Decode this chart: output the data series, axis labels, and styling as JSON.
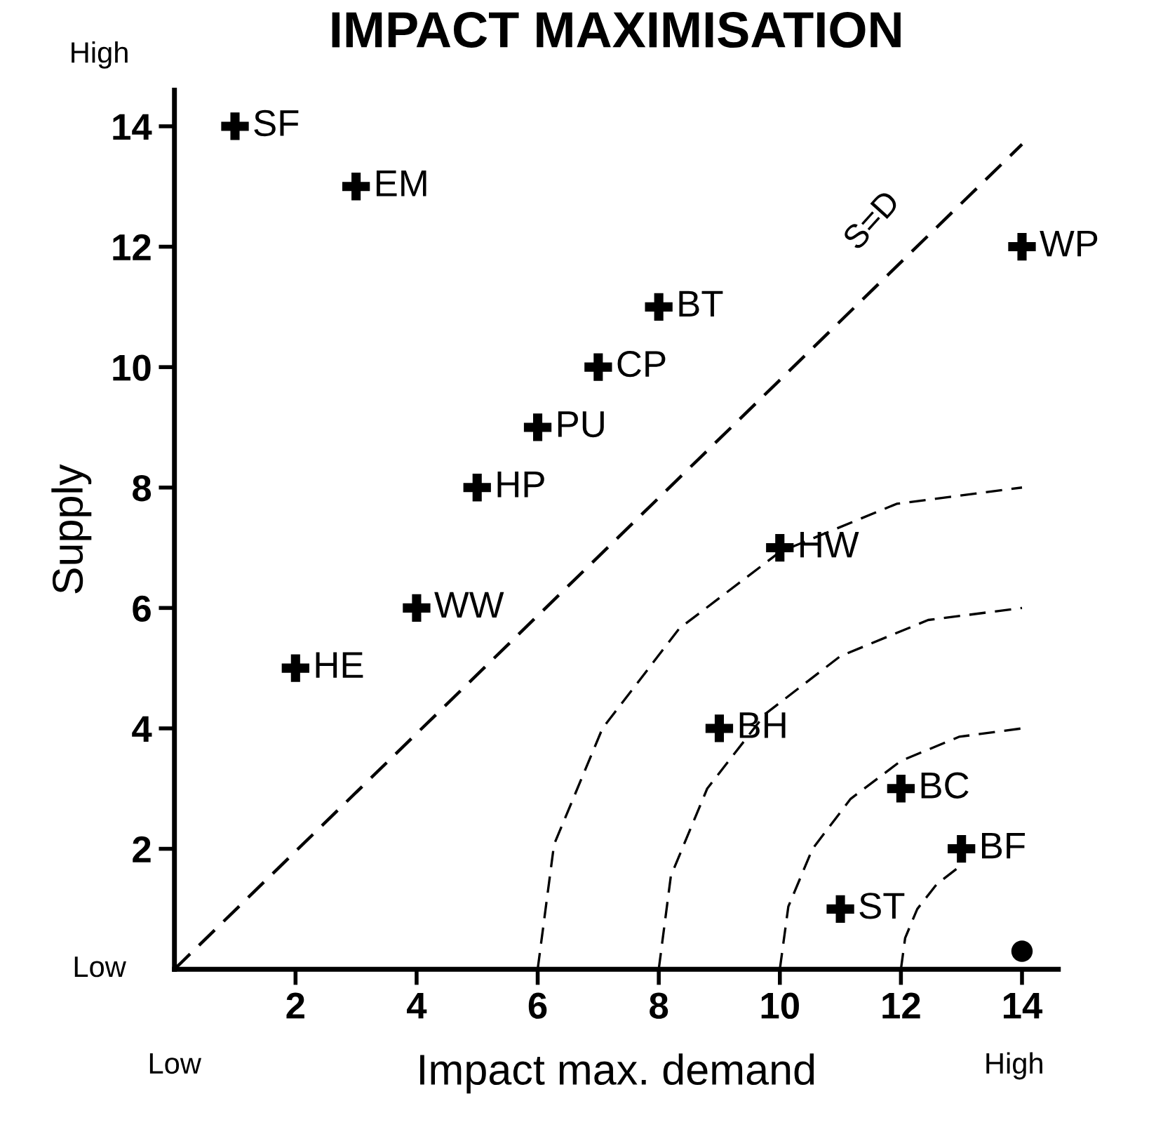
{
  "chart_data": {
    "type": "scatter",
    "title": "IMPACT MAXIMISATION",
    "xlabel": "Impact max. demand",
    "ylabel": "Supply",
    "annotations": [
      "High",
      "Low",
      "Low",
      "High"
    ],
    "xlim": [
      0,
      14.6
    ],
    "ylim": [
      0,
      14.6
    ],
    "xticks": [
      2,
      4,
      6,
      8,
      10,
      12,
      14
    ],
    "yticks": [
      2,
      4,
      6,
      8,
      10,
      12,
      14
    ],
    "grid": false,
    "legend": false,
    "series": [
      {
        "marker": "cross",
        "color": "#000000",
        "x": [
          1,
          3,
          14,
          8,
          7,
          6,
          5,
          10,
          4,
          2,
          9,
          12,
          13,
          11
        ],
        "values": [
          14,
          13,
          12,
          11,
          10,
          9,
          8,
          7,
          6,
          5,
          4,
          3,
          2,
          1
        ],
        "value_labels": [
          "SF",
          "EM",
          "WP",
          "BT",
          "CP",
          "PU",
          "HP",
          "HW",
          "WW",
          "HE",
          "BH",
          "BC",
          "BF",
          "ST"
        ]
      },
      {
        "type": "scatter",
        "marker": "circle",
        "color": "#000000",
        "x": [
          14
        ],
        "values": [
          0.3
        ]
      },
      {
        "type": "line",
        "name": "S=D",
        "line_style": "dashed",
        "color": "#000000",
        "x": [
          0,
          14
        ],
        "values": [
          0,
          13.7
        ]
      },
      {
        "type": "line",
        "line_style": "dashed",
        "color": "#000000",
        "x": [
          6,
          6.27,
          7.07,
          8.34,
          10,
          11.93,
          14
        ],
        "values": [
          0,
          2.07,
          4,
          5.66,
          6.93,
          7.73,
          8
        ]
      },
      {
        "type": "line",
        "line_style": "dashed",
        "color": "#000000",
        "x": [
          8,
          8.2,
          8.8,
          9.76,
          11,
          12.45,
          14
        ],
        "values": [
          0,
          1.55,
          3,
          4.24,
          5.2,
          5.8,
          6
        ]
      },
      {
        "type": "line",
        "line_style": "dashed",
        "color": "#000000",
        "x": [
          10,
          10.14,
          10.54,
          11.17,
          12,
          12.96,
          14
        ],
        "values": [
          0,
          1.04,
          2,
          2.83,
          3.46,
          3.86,
          4
        ]
      },
      {
        "type": "line",
        "line_style": "dashed",
        "color": "#000000",
        "x": [
          12,
          12.07,
          12.27,
          12.59,
          13
        ],
        "values": [
          0,
          0.52,
          1,
          1.41,
          1.73
        ]
      }
    ]
  }
}
